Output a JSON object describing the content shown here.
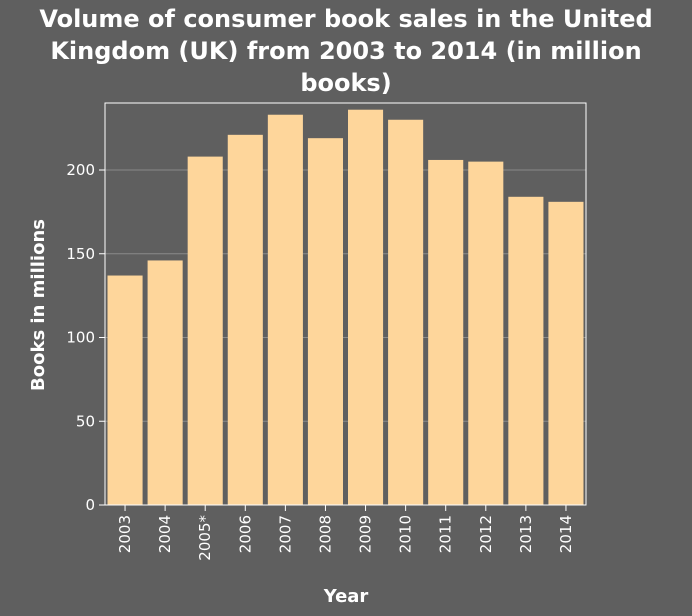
{
  "chart_data": {
    "type": "bar",
    "title_lines": [
      "Volume of consumer book sales in the United",
      "Kingdom (UK) from 2003 to 2014 (in million",
      "books)"
    ],
    "xlabel": "Year",
    "ylabel": "Books in millions",
    "categories": [
      "2003",
      "2004",
      "2005*",
      "2006",
      "2007",
      "2008",
      "2009",
      "2010",
      "2011",
      "2012",
      "2013",
      "2014"
    ],
    "values": [
      137,
      146,
      208,
      221,
      233,
      219,
      236,
      230,
      206,
      205,
      184,
      181
    ],
    "ylim": [
      0,
      240
    ],
    "yticks": [
      0,
      50,
      100,
      150,
      200
    ],
    "grid": true,
    "legend": "none",
    "colors": {
      "background": "#5f5f5f",
      "bar": "#fed69b",
      "axis": "#ffffff",
      "grid": "#8a8a8a",
      "text": "#ffffff"
    }
  }
}
